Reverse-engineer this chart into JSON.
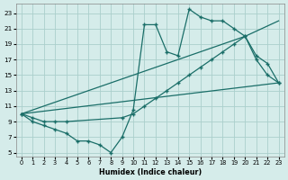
{
  "bg_color": "#d5ecea",
  "grid_color": "#aacfcc",
  "line_color": "#1a6e68",
  "xlabel": "Humidex (Indice chaleur)",
  "xlim": [
    -0.5,
    23.5
  ],
  "ylim": [
    4.5,
    24.2
  ],
  "xticks": [
    0,
    1,
    2,
    3,
    4,
    5,
    6,
    7,
    8,
    9,
    10,
    11,
    12,
    13,
    14,
    15,
    16,
    17,
    18,
    19,
    20,
    21,
    22,
    23
  ],
  "yticks": [
    5,
    7,
    9,
    11,
    13,
    15,
    17,
    19,
    21,
    23
  ],
  "curve1_x": [
    0,
    1,
    2,
    3,
    4,
    5,
    6,
    7,
    8,
    9,
    10,
    11,
    12,
    13,
    14,
    15,
    16,
    17,
    18,
    19,
    20,
    21,
    22,
    23
  ],
  "curve1_y": [
    10,
    9,
    8.5,
    8,
    7.5,
    6.5,
    6.5,
    6,
    5,
    7,
    10.5,
    21.5,
    21.5,
    18,
    17.5,
    23.5,
    22.5,
    22,
    22,
    21,
    20,
    17,
    15,
    14
  ],
  "line2_x": [
    0,
    23
  ],
  "line2_y": [
    10,
    14
  ],
  "line3_x": [
    0,
    20,
    23
  ],
  "line3_y": [
    10,
    20,
    22
  ],
  "curve2_x": [
    0,
    1,
    2,
    3,
    4,
    9,
    10,
    11,
    12,
    13,
    14,
    15,
    16,
    17,
    18,
    19,
    20,
    21,
    22,
    23
  ],
  "curve2_y": [
    10,
    9.5,
    9,
    9,
    9,
    9.5,
    10,
    11,
    12,
    13,
    14,
    15,
    16,
    17,
    18,
    19,
    20,
    17.5,
    16.5,
    14
  ]
}
